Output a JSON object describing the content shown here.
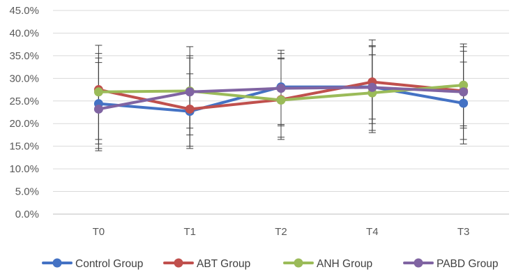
{
  "chart_data": {
    "type": "line",
    "title": "",
    "xlabel": "",
    "ylabel": "",
    "categories": [
      "T0",
      "T1",
      "T2",
      "T4",
      "T3"
    ],
    "ylim": [
      0,
      0.45
    ],
    "y_ticks": [
      0,
      0.05,
      0.1,
      0.15,
      0.2,
      0.25,
      0.3,
      0.35,
      0.4,
      0.45
    ],
    "y_tick_labels": [
      "0.0%",
      "5.0%",
      "10.0%",
      "15.0%",
      "20.0%",
      "25.0%",
      "30.0%",
      "35.0%",
      "40.0%",
      "45.0%"
    ],
    "grid": true,
    "legend_position": "bottom",
    "series": [
      {
        "name": "Control Group",
        "color": "#4472C4",
        "values": [
          0.244,
          0.227,
          0.281,
          0.281,
          0.245
        ],
        "error_low": [
          0.14,
          0.145,
          0.165,
          0.18,
          0.155
        ],
        "error_high": [
          0.373,
          0.37,
          0.362,
          0.385,
          0.376
        ]
      },
      {
        "name": "ABT Group",
        "color": "#C0504D",
        "values": [
          0.275,
          0.232,
          0.253,
          0.292,
          0.272
        ],
        "error_low": [
          0.145,
          0.15,
          0.17,
          0.185,
          0.165
        ],
        "error_high": [
          0.355,
          0.35,
          0.355,
          0.37,
          0.37
        ]
      },
      {
        "name": "ANH Group",
        "color": "#9BBB59",
        "values": [
          0.27,
          0.272,
          0.252,
          0.268,
          0.285
        ],
        "error_low": [
          0.155,
          0.175,
          0.195,
          0.2,
          0.19
        ],
        "error_high": [
          0.345,
          0.345,
          0.345,
          0.352,
          0.36
        ]
      },
      {
        "name": "PABD Group",
        "color": "#8064A2",
        "values": [
          0.232,
          0.27,
          0.278,
          0.28,
          0.27
        ],
        "error_low": [
          0.165,
          0.19,
          0.198,
          0.21,
          0.195
        ],
        "error_high": [
          0.335,
          0.31,
          0.343,
          0.372,
          0.336
        ]
      }
    ]
  }
}
